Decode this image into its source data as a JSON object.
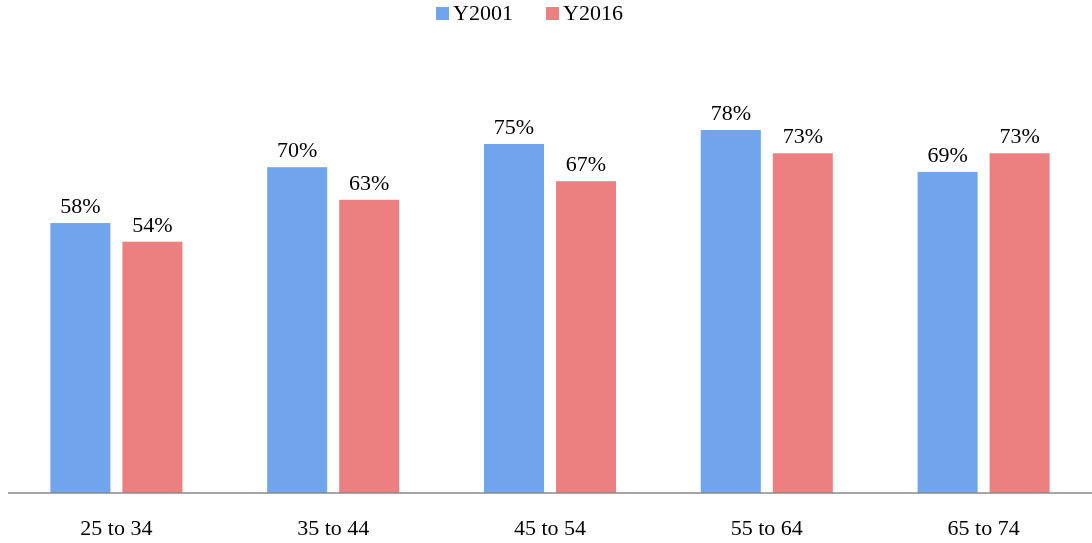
{
  "chart_data": {
    "type": "bar",
    "categories": [
      "25 to 34",
      "35 to 44",
      "45 to 54",
      "55 to 64",
      "65 to 74"
    ],
    "series": [
      {
        "name": "Y2001",
        "color": "#70a4ec",
        "values": [
          58,
          70,
          75,
          78,
          69
        ],
        "value_labels": [
          "58%",
          "70%",
          "75%",
          "78%",
          "69%"
        ]
      },
      {
        "name": "Y2016",
        "color": "#ec7f7f",
        "values": [
          54,
          63,
          67,
          73,
          73
        ],
        "value_labels": [
          "54%",
          "63%",
          "67%",
          "73%",
          "73%"
        ]
      }
    ],
    "legend": "top"
  }
}
